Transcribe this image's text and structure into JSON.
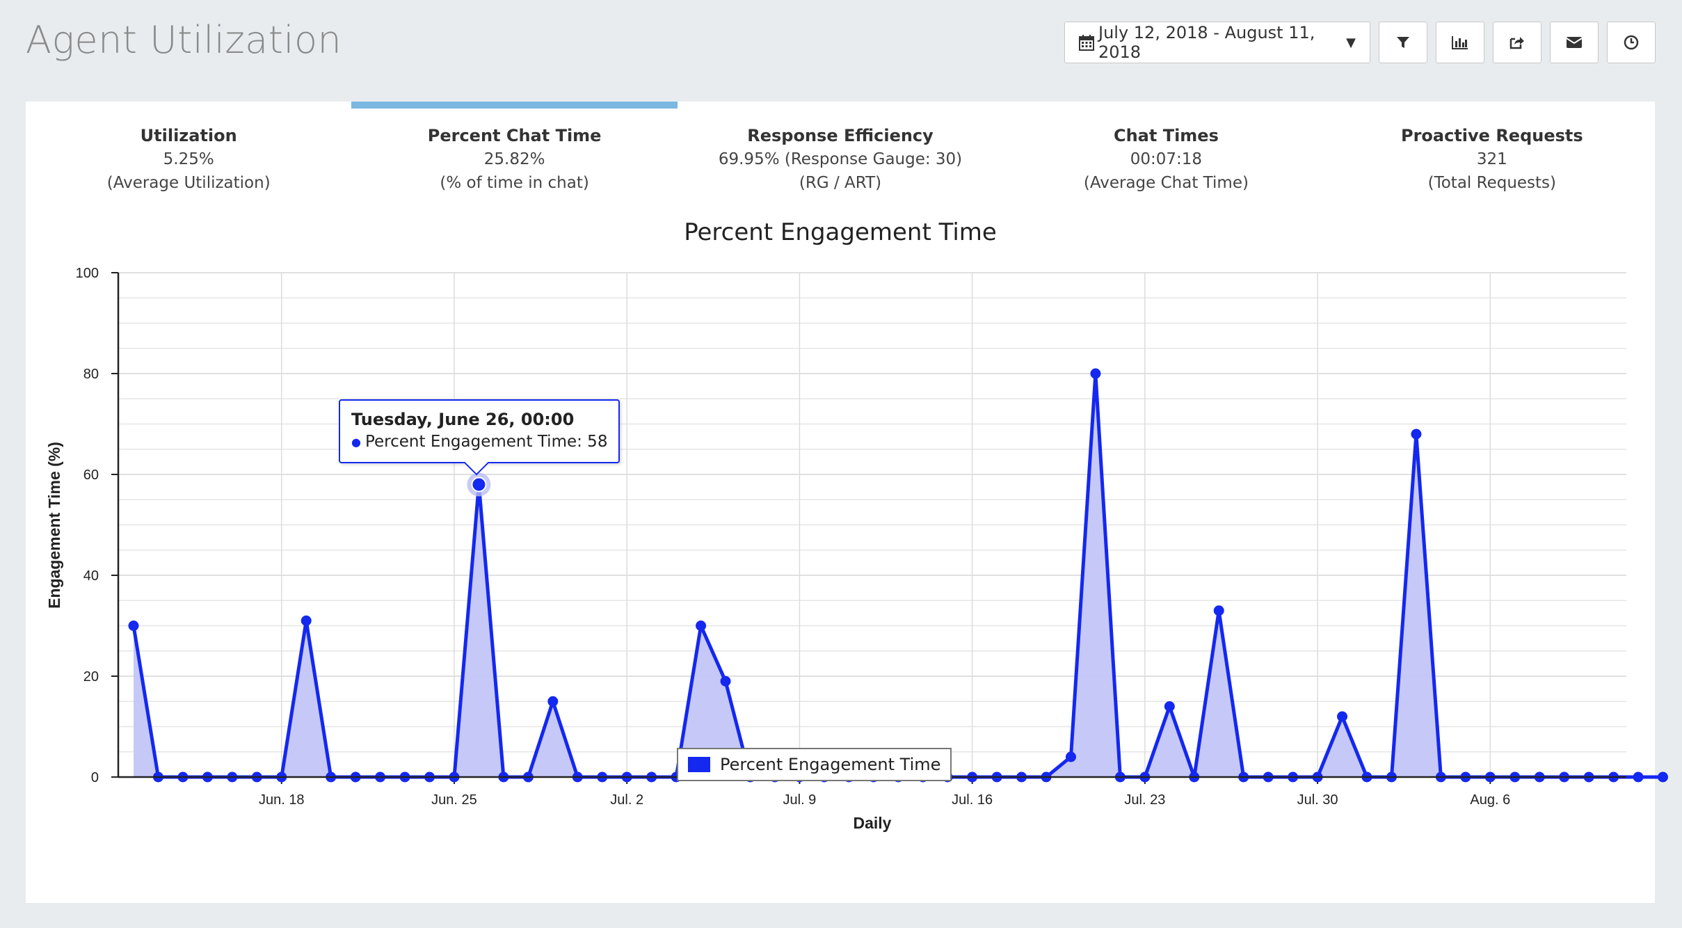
{
  "header": {
    "title": "Agent Utilization",
    "date_range": "July 12, 2018 - August 11, 2018",
    "icons": [
      "calendar-icon",
      "filter-icon",
      "bar-chart-icon",
      "share-icon",
      "envelope-icon",
      "clock-icon"
    ]
  },
  "tabs": [
    {
      "label": "Utilization",
      "value": "5.25%",
      "desc": "(Average Utilization)"
    },
    {
      "label": "Percent Chat Time",
      "value": "25.82%",
      "desc": "(% of time in chat)"
    },
    {
      "label": "Response Efficiency",
      "value": "69.95% (Response Gauge: 30)",
      "desc": "(RG / ART)"
    },
    {
      "label": "Chat Times",
      "value": "00:07:18",
      "desc": "(Average Chat Time)"
    },
    {
      "label": "Proactive Requests",
      "value": "321",
      "desc": "(Total Requests)"
    }
  ],
  "active_tab": 1,
  "colors": {
    "series": "#1428f0",
    "fill": "#c3c6f7",
    "active_tab": "#7ab8e2"
  },
  "tooltip": {
    "title": "Tuesday, June 26, 00:00",
    "line": "Percent Engagement Time: 58"
  },
  "chart_data": {
    "type": "area",
    "title": "Percent Engagement Time",
    "xlabel": "Daily",
    "ylabel": "Engagement Time (%)",
    "ylim": [
      0,
      100
    ],
    "yticks": [
      0,
      20,
      40,
      60,
      80,
      100
    ],
    "x_start": "Jun. 12",
    "x_tick_labels": [
      "Jun. 18",
      "Jun. 25",
      "Jul. 2",
      "Jul. 9",
      "Jul. 16",
      "Jul. 23",
      "Jul. 30",
      "Aug. 6"
    ],
    "legend_position": "bottom-center",
    "grid": true,
    "series": [
      {
        "name": "Percent Engagement Time",
        "values": [
          30,
          0,
          0,
          0,
          0,
          0,
          0,
          31,
          0,
          0,
          0,
          0,
          0,
          0,
          58,
          0,
          0,
          15,
          0,
          0,
          0,
          0,
          0,
          30,
          19,
          0,
          0,
          0,
          0,
          0,
          0,
          0,
          0,
          0,
          0,
          0,
          0,
          0,
          4,
          80,
          0,
          0,
          14,
          0,
          33,
          0,
          0,
          0,
          0,
          12,
          0,
          0,
          68,
          0,
          0,
          0,
          0,
          0,
          0,
          0,
          0,
          0,
          0
        ]
      }
    ]
  }
}
